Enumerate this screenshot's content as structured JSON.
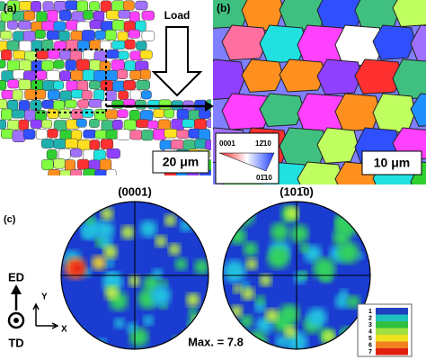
{
  "panels": {
    "a": {
      "label": "(a)",
      "load": "Load",
      "scale": "20 μm"
    },
    "b": {
      "label": "(b)",
      "scale": "10 μm",
      "key": [
        "0001",
        "12̄10",
        "01̄10"
      ]
    },
    "c": {
      "label": "(c)",
      "pole_figures": [
        "(0001)",
        "(101̄0)"
      ],
      "max": "Max. = 7.8",
      "axes": {
        "ed": "ED",
        "td": "TD",
        "y": "Y",
        "x": "X"
      },
      "scale_levels": [
        1,
        2,
        3,
        4,
        5,
        6,
        7
      ]
    }
  }
}
